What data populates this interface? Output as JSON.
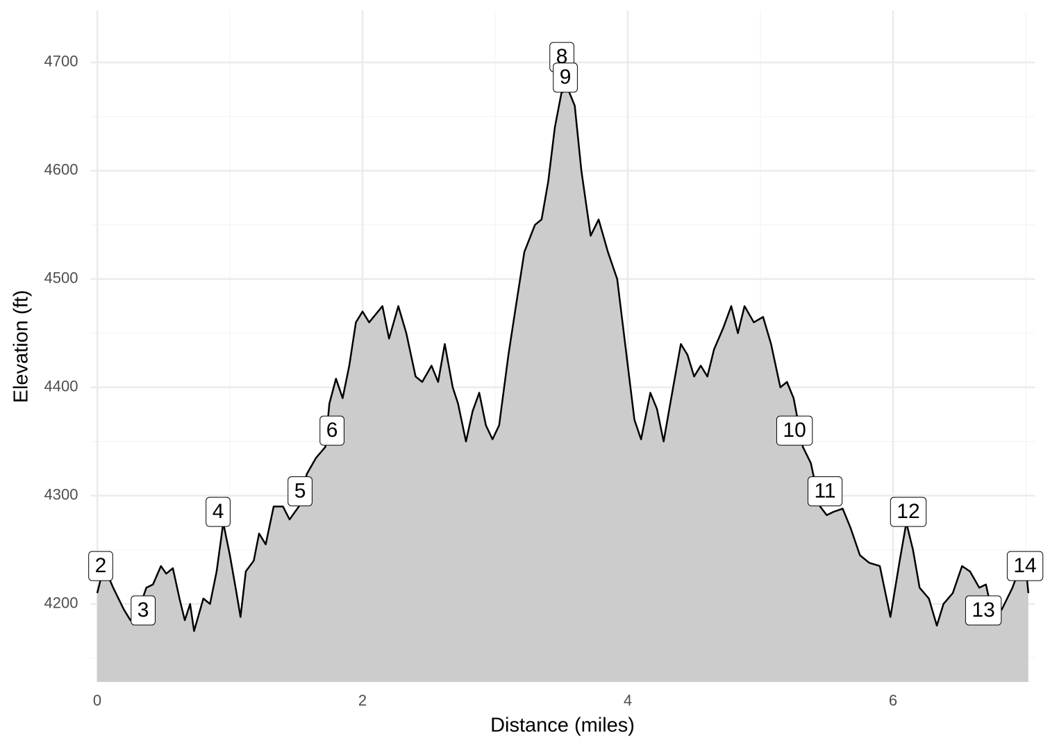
{
  "chart_data": {
    "type": "area",
    "x_label": "Distance (miles)",
    "y_label": "Elevation (ft)",
    "x": [
      0.0,
      0.05,
      0.12,
      0.2,
      0.25,
      0.3,
      0.37,
      0.42,
      0.48,
      0.52,
      0.57,
      0.62,
      0.66,
      0.7,
      0.73,
      0.8,
      0.85,
      0.9,
      0.95,
      1.0,
      1.05,
      1.08,
      1.12,
      1.18,
      1.22,
      1.27,
      1.33,
      1.4,
      1.45,
      1.52,
      1.58,
      1.65,
      1.72,
      1.75,
      1.8,
      1.85,
      1.9,
      1.95,
      2.0,
      2.05,
      2.15,
      2.2,
      2.27,
      2.33,
      2.4,
      2.45,
      2.52,
      2.57,
      2.62,
      2.68,
      2.72,
      2.78,
      2.83,
      2.88,
      2.93,
      2.98,
      3.03,
      3.1,
      3.15,
      3.22,
      3.3,
      3.35,
      3.4,
      3.45,
      3.5,
      3.55,
      3.6,
      3.65,
      3.72,
      3.78,
      3.85,
      3.92,
      4.0,
      4.05,
      4.1,
      4.17,
      4.22,
      4.27,
      4.32,
      4.4,
      4.45,
      4.5,
      4.55,
      4.6,
      4.65,
      4.72,
      4.78,
      4.83,
      4.88,
      4.95,
      5.02,
      5.08,
      5.15,
      5.2,
      5.25,
      5.32,
      5.38,
      5.45,
      5.5,
      5.55,
      5.62,
      5.68,
      5.75,
      5.82,
      5.9,
      5.98,
      6.05,
      6.1,
      6.15,
      6.2,
      6.27,
      6.33,
      6.38,
      6.45,
      6.52,
      6.58,
      6.65,
      6.7,
      6.75,
      6.82,
      6.9,
      6.96,
      7.0,
      7.02
    ],
    "values": [
      4210,
      4235,
      4215,
      4195,
      4185,
      4190,
      4215,
      4218,
      4235,
      4228,
      4233,
      4205,
      4185,
      4200,
      4175,
      4205,
      4200,
      4230,
      4275,
      4245,
      4210,
      4188,
      4230,
      4240,
      4265,
      4255,
      4290,
      4290,
      4278,
      4290,
      4320,
      4335,
      4345,
      4385,
      4408,
      4390,
      4420,
      4460,
      4470,
      4460,
      4475,
      4445,
      4475,
      4450,
      4410,
      4405,
      4420,
      4405,
      4440,
      4400,
      4385,
      4350,
      4378,
      4395,
      4365,
      4352,
      4365,
      4430,
      4470,
      4525,
      4550,
      4555,
      4590,
      4640,
      4672,
      4675,
      4660,
      4600,
      4540,
      4555,
      4525,
      4500,
      4420,
      4370,
      4352,
      4395,
      4380,
      4350,
      4385,
      4440,
      4430,
      4410,
      4420,
      4410,
      4435,
      4455,
      4475,
      4450,
      4475,
      4460,
      4465,
      4440,
      4400,
      4405,
      4390,
      4345,
      4330,
      4290,
      4282,
      4285,
      4288,
      4270,
      4245,
      4238,
      4235,
      4188,
      4240,
      4275,
      4250,
      4215,
      4205,
      4180,
      4200,
      4210,
      4235,
      4230,
      4215,
      4218,
      4190,
      4195,
      4215,
      4235,
      4235,
      4210
    ],
    "fill_color": "#cccccc",
    "line_color": "#000000",
    "annotations": [
      {
        "label": "2",
        "x": 0.026,
        "y": 4235
      },
      {
        "label": "3",
        "x": 0.346,
        "y": 4194
      },
      {
        "label": "4",
        "x": 0.911,
        "y": 4285
      },
      {
        "label": "5",
        "x": 1.529,
        "y": 4304
      },
      {
        "label": "6",
        "x": 1.77,
        "y": 4360
      },
      {
        "label": "8",
        "x": 3.503,
        "y": 4705
      },
      {
        "label": "9",
        "x": 3.529,
        "y": 4686
      },
      {
        "label": "10",
        "x": 5.257,
        "y": 4360
      },
      {
        "label": "11",
        "x": 5.487,
        "y": 4304
      },
      {
        "label": "12",
        "x": 6.115,
        "y": 4285
      },
      {
        "label": "13",
        "x": 6.681,
        "y": 4194
      },
      {
        "label": "14",
        "x": 6.995,
        "y": 4235
      }
    ],
    "xlim": [
      -0.05,
      7.07
    ],
    "xticks": [
      0,
      2,
      4,
      6
    ],
    "xticks_minor": [
      1,
      3,
      5,
      7
    ],
    "ylim": [
      4128,
      4748
    ],
    "yticks": [
      4200,
      4300,
      4400,
      4500,
      4600,
      4700
    ],
    "yticks_minor": [
      4150,
      4250,
      4350,
      4450,
      4550,
      4650
    ],
    "grid": true
  }
}
